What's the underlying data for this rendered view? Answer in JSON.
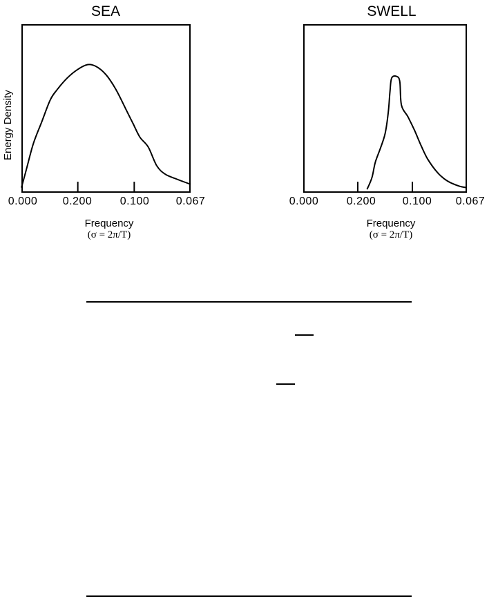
{
  "chart_data": [
    {
      "type": "line",
      "title": "SEA",
      "ylabel": "Energy Density",
      "xlabel": "Frequency",
      "xlabel_sub": "(σ = 2π/T)",
      "x_tick_labels": [
        "0.000",
        "0.200",
        "0.100",
        "0.067"
      ],
      "grid": false,
      "legend": "none",
      "curve": [
        [
          0.0,
          0.03
        ],
        [
          0.03,
          0.14
        ],
        [
          0.07,
          0.29
        ],
        [
          0.12,
          0.42
        ],
        [
          0.17,
          0.55
        ],
        [
          0.21,
          0.61
        ],
        [
          0.27,
          0.68
        ],
        [
          0.33,
          0.73
        ],
        [
          0.39,
          0.76
        ],
        [
          0.44,
          0.75
        ],
        [
          0.5,
          0.7
        ],
        [
          0.56,
          0.61
        ],
        [
          0.62,
          0.49
        ],
        [
          0.66,
          0.41
        ],
        [
          0.7,
          0.33
        ],
        [
          0.75,
          0.27
        ],
        [
          0.8,
          0.16
        ],
        [
          0.85,
          0.11
        ],
        [
          0.92,
          0.08
        ],
        [
          1.0,
          0.05
        ]
      ]
    },
    {
      "type": "line",
      "title": "SWELL",
      "ylabel": "",
      "xlabel": "Frequency",
      "xlabel_sub": "(σ = 2π/T)",
      "x_tick_labels": [
        "0.000",
        "0.200",
        "0.100",
        "0.067"
      ],
      "grid": false,
      "legend": "none",
      "curve": [
        [
          0.39,
          0.02
        ],
        [
          0.42,
          0.09
        ],
        [
          0.44,
          0.18
        ],
        [
          0.47,
          0.26
        ],
        [
          0.5,
          0.35
        ],
        [
          0.52,
          0.48
        ],
        [
          0.53,
          0.6
        ],
        [
          0.54,
          0.68
        ],
        [
          0.57,
          0.69
        ],
        [
          0.59,
          0.66
        ],
        [
          0.6,
          0.52
        ],
        [
          0.64,
          0.45
        ],
        [
          0.68,
          0.37
        ],
        [
          0.72,
          0.28
        ],
        [
          0.76,
          0.2
        ],
        [
          0.82,
          0.12
        ],
        [
          0.88,
          0.07
        ],
        [
          0.95,
          0.04
        ],
        [
          1.0,
          0.03
        ]
      ]
    }
  ]
}
